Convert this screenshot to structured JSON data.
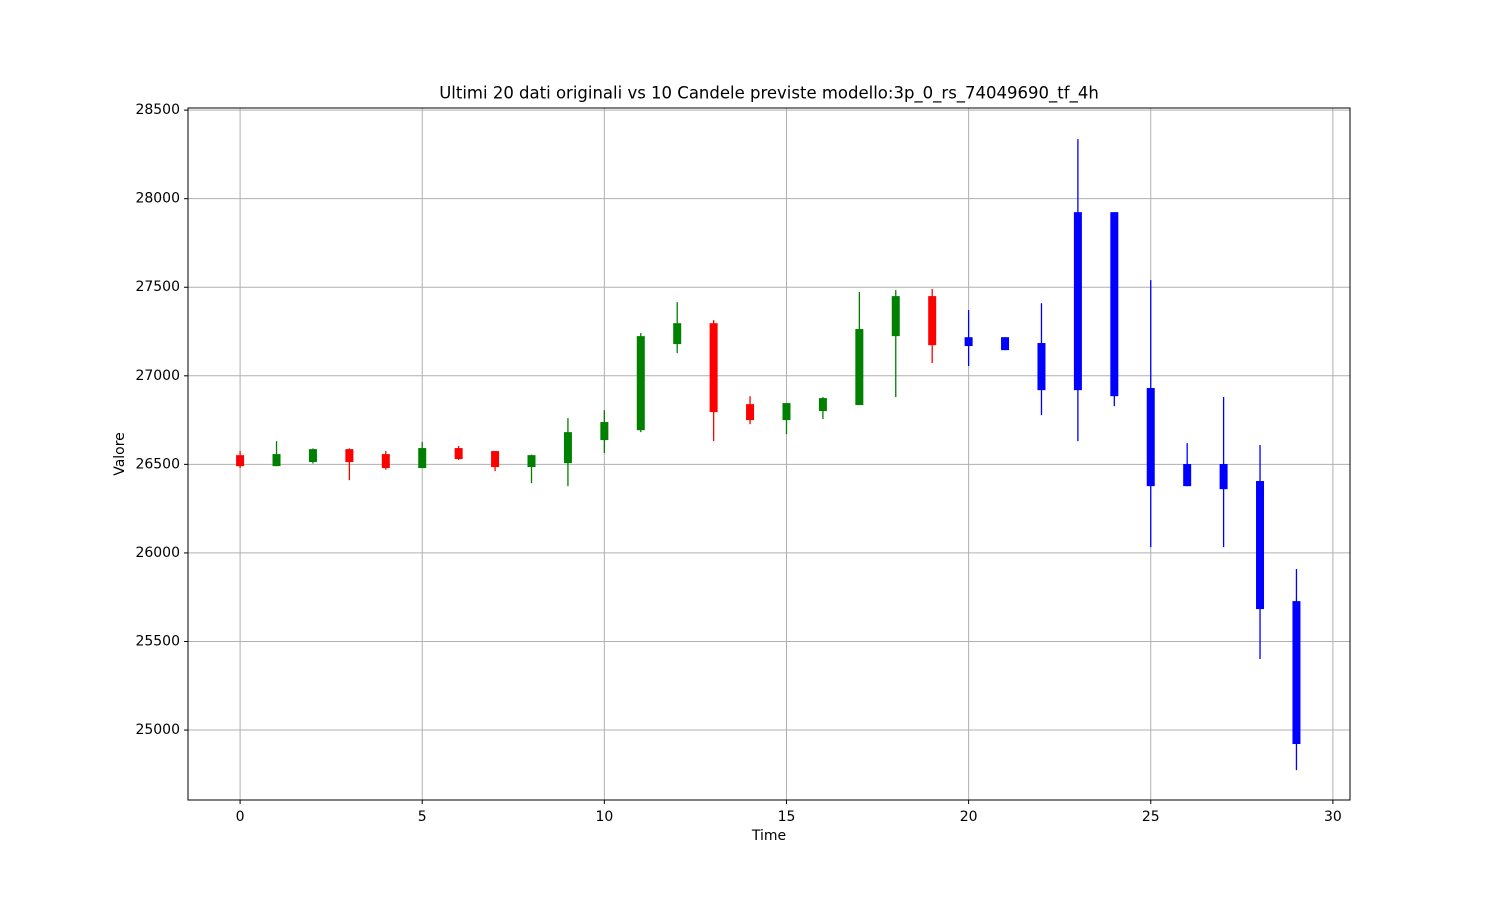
{
  "chart_data": {
    "type": "candlestick",
    "title": "Ultimi 20 dati originali vs 10 Candele previste modello:3p_0_rs_74049690_tf_4h",
    "x_label": "Time",
    "y_label": "Valore",
    "xlim": [
      -1.43,
      30.47
    ],
    "ylim": [
      24605,
      28512
    ],
    "xticks": [
      0,
      5,
      10,
      15,
      20,
      25,
      30
    ],
    "yticks": [
      25000,
      25500,
      26000,
      26500,
      27000,
      27500,
      28000,
      28500
    ],
    "grid": true,
    "up_color": "#008000",
    "down_color": "#ff0000",
    "groups": [
      {
        "color_by_direction": true,
        "x": [
          0,
          1,
          2,
          3,
          4,
          5,
          6,
          7,
          8,
          9,
          10,
          11,
          12,
          13,
          14,
          15,
          16,
          17,
          18,
          19
        ],
        "open": [
          26552,
          26490,
          26513,
          26586,
          26558,
          26479,
          26592,
          26575,
          26485,
          26507,
          26637,
          26693,
          27179,
          27297,
          26840,
          26750,
          26801,
          26835,
          27224,
          27450
        ],
        "high": [
          26575,
          26631,
          26590,
          26590,
          26575,
          26626,
          26603,
          26575,
          26555,
          26761,
          26806,
          27241,
          27416,
          27314,
          26885,
          26846,
          26880,
          27473,
          27484,
          27490
        ],
        "low": [
          26479,
          26490,
          26505,
          26411,
          26470,
          26479,
          26525,
          26462,
          26394,
          26377,
          26564,
          26682,
          27128,
          26631,
          26727,
          26671,
          26756,
          26835,
          26880,
          27072
        ],
        "close": [
          26490,
          26558,
          26586,
          26513,
          26479,
          26592,
          26530,
          26485,
          26552,
          26682,
          26739,
          27224,
          27297,
          26795,
          26750,
          26846,
          26874,
          27264,
          27450,
          27173
        ]
      },
      {
        "color_by_direction": false,
        "color": "#0000ff",
        "x": [
          20,
          21,
          22,
          23,
          24,
          25,
          26,
          27,
          28,
          29
        ],
        "open": [
          27218,
          27218,
          27185,
          27924,
          27924,
          26931,
          26502,
          26502,
          26406,
          25728
        ],
        "high": [
          27371,
          27218,
          27410,
          28336,
          27924,
          27540,
          26620,
          26880,
          26609,
          25909
        ],
        "low": [
          27055,
          27145,
          26778,
          26631,
          26829,
          26033,
          26377,
          26033,
          25401,
          24774
        ],
        "close": [
          27168,
          27145,
          26919,
          26919,
          26885,
          26377,
          26377,
          26360,
          25683,
          24921
        ]
      }
    ]
  }
}
